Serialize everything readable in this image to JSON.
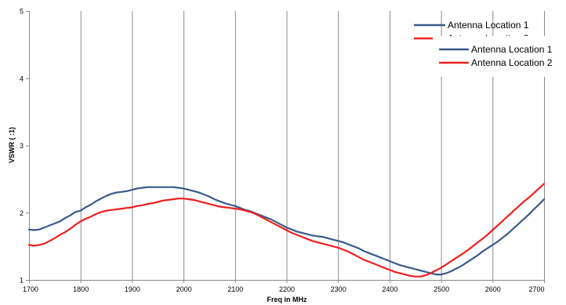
{
  "chart_data": {
    "type": "line",
    "title": "",
    "xlabel": "Freq in MHz",
    "ylabel": "VSWR ( :1)",
    "xlim": [
      1700,
      2700
    ],
    "ylim": [
      1,
      5
    ],
    "xticks": [
      1700,
      1800,
      1900,
      2000,
      2100,
      2200,
      2300,
      2400,
      2500,
      2600,
      2700
    ],
    "yticks": [
      1,
      2,
      3,
      4,
      5
    ],
    "grid": "vertical",
    "legend_position": "top-right",
    "legends": [
      [
        "Antenna Location 1",
        "Antenna Location 2"
      ],
      [
        "Antenna Location 1",
        "Antenna Location 2"
      ]
    ],
    "series": [
      {
        "name": "Antenna Location 1",
        "color": "#3a5a8a",
        "x": [
          1700,
          1710,
          1720,
          1730,
          1740,
          1750,
          1760,
          1770,
          1780,
          1790,
          1800,
          1810,
          1820,
          1830,
          1840,
          1850,
          1860,
          1870,
          1880,
          1890,
          1900,
          1910,
          1920,
          1930,
          1940,
          1950,
          1960,
          1970,
          1980,
          1990,
          2000,
          2010,
          2020,
          2030,
          2040,
          2050,
          2060,
          2070,
          2080,
          2090,
          2100,
          2110,
          2120,
          2130,
          2140,
          2150,
          2160,
          2170,
          2180,
          2190,
          2200,
          2210,
          2220,
          2230,
          2240,
          2250,
          2260,
          2270,
          2280,
          2290,
          2300,
          2310,
          2320,
          2330,
          2340,
          2350,
          2360,
          2370,
          2380,
          2390,
          2400,
          2410,
          2420,
          2430,
          2440,
          2450,
          2460,
          2470,
          2480,
          2490,
          2500,
          2510,
          2520,
          2530,
          2540,
          2550,
          2560,
          2570,
          2580,
          2590,
          2600,
          2610,
          2620,
          2630,
          2640,
          2650,
          2660,
          2670,
          2680,
          2690,
          2700
        ],
        "y": [
          1.75,
          1.74,
          1.75,
          1.78,
          1.81,
          1.84,
          1.87,
          1.92,
          1.96,
          2.01,
          2.03,
          2.08,
          2.12,
          2.17,
          2.21,
          2.25,
          2.28,
          2.3,
          2.31,
          2.32,
          2.34,
          2.36,
          2.37,
          2.38,
          2.38,
          2.38,
          2.38,
          2.38,
          2.38,
          2.37,
          2.36,
          2.34,
          2.32,
          2.3,
          2.27,
          2.24,
          2.2,
          2.17,
          2.14,
          2.12,
          2.1,
          2.07,
          2.04,
          2.02,
          1.99,
          1.96,
          1.93,
          1.9,
          1.86,
          1.82,
          1.78,
          1.75,
          1.72,
          1.7,
          1.68,
          1.66,
          1.65,
          1.64,
          1.62,
          1.6,
          1.58,
          1.56,
          1.53,
          1.5,
          1.47,
          1.43,
          1.4,
          1.37,
          1.34,
          1.31,
          1.28,
          1.25,
          1.22,
          1.2,
          1.18,
          1.16,
          1.14,
          1.12,
          1.1,
          1.08,
          1.08,
          1.1,
          1.13,
          1.17,
          1.21,
          1.26,
          1.31,
          1.36,
          1.42,
          1.47,
          1.52,
          1.57,
          1.63,
          1.69,
          1.76,
          1.83,
          1.9,
          1.97,
          2.05,
          2.12,
          2.2
        ]
      },
      {
        "name": "Antenna Location 2",
        "color": "#f02020",
        "x": [
          1700,
          1710,
          1720,
          1730,
          1740,
          1750,
          1760,
          1770,
          1780,
          1790,
          1800,
          1810,
          1820,
          1830,
          1840,
          1850,
          1860,
          1870,
          1880,
          1890,
          1900,
          1910,
          1920,
          1930,
          1940,
          1950,
          1960,
          1970,
          1980,
          1990,
          2000,
          2010,
          2020,
          2030,
          2040,
          2050,
          2060,
          2070,
          2080,
          2090,
          2100,
          2110,
          2120,
          2130,
          2140,
          2150,
          2160,
          2170,
          2180,
          2190,
          2200,
          2210,
          2220,
          2230,
          2240,
          2250,
          2260,
          2270,
          2280,
          2290,
          2300,
          2310,
          2320,
          2330,
          2340,
          2350,
          2360,
          2370,
          2380,
          2390,
          2400,
          2410,
          2420,
          2430,
          2440,
          2450,
          2460,
          2470,
          2480,
          2490,
          2500,
          2510,
          2520,
          2530,
          2540,
          2550,
          2560,
          2570,
          2580,
          2590,
          2600,
          2610,
          2620,
          2630,
          2640,
          2650,
          2660,
          2670,
          2680,
          2690,
          2700
        ],
        "y": [
          1.52,
          1.51,
          1.52,
          1.54,
          1.58,
          1.62,
          1.67,
          1.71,
          1.76,
          1.82,
          1.87,
          1.91,
          1.94,
          1.98,
          2.01,
          2.03,
          2.04,
          2.05,
          2.06,
          2.07,
          2.08,
          2.1,
          2.11,
          2.13,
          2.14,
          2.16,
          2.18,
          2.19,
          2.2,
          2.21,
          2.21,
          2.2,
          2.19,
          2.17,
          2.15,
          2.13,
          2.11,
          2.09,
          2.08,
          2.07,
          2.06,
          2.05,
          2.03,
          2.01,
          1.98,
          1.94,
          1.9,
          1.86,
          1.82,
          1.78,
          1.74,
          1.7,
          1.67,
          1.64,
          1.61,
          1.58,
          1.56,
          1.54,
          1.52,
          1.5,
          1.48,
          1.45,
          1.42,
          1.38,
          1.34,
          1.3,
          1.27,
          1.24,
          1.21,
          1.18,
          1.15,
          1.12,
          1.1,
          1.08,
          1.06,
          1.05,
          1.05,
          1.07,
          1.1,
          1.14,
          1.18,
          1.23,
          1.28,
          1.33,
          1.38,
          1.43,
          1.49,
          1.55,
          1.61,
          1.67,
          1.74,
          1.81,
          1.88,
          1.95,
          2.02,
          2.09,
          2.16,
          2.22,
          2.29,
          2.36,
          2.43
        ]
      }
    ]
  }
}
